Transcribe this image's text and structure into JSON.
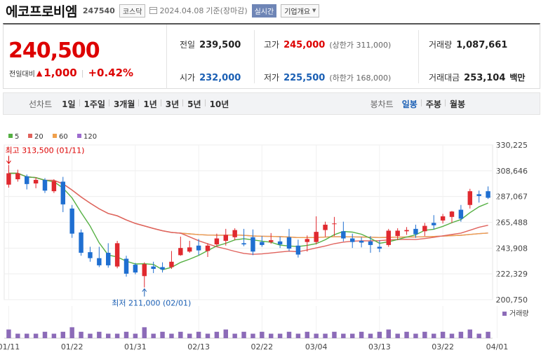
{
  "header": {
    "name": "에코프로비엠",
    "code": "247540",
    "market": "코스닥",
    "date": "2024.04.08",
    "date_suffix": "기준(장마감)",
    "realtime": "실시간",
    "company_info": "기업개요"
  },
  "quote": {
    "price": "240,500",
    "change_label": "전일대비",
    "change_amount": "1,000",
    "change_pct": "+0.42%",
    "prev_close_label": "전일",
    "prev_close": "239,500",
    "high_label": "고가",
    "high": "245,000",
    "upper_limit": "(상한가 311,000)",
    "volume_label": "거래량",
    "volume": "1,087,661",
    "open_label": "시가",
    "open": "232,000",
    "low_label": "저가",
    "low": "225,500",
    "lower_limit": "(하한가 168,000)",
    "value_label": "거래대금",
    "value": "253,104",
    "value_unit": "백만"
  },
  "periods": {
    "line_label": "선차트",
    "line_items": [
      "1일",
      "1주일",
      "3개월",
      "1년",
      "3년",
      "5년",
      "10년"
    ],
    "candle_label": "봉차트",
    "candle_items": [
      "일봉",
      "주봉",
      "월봉"
    ],
    "active_candle": "일봉"
  },
  "chart_data": {
    "type": "candlestick",
    "legend": [
      {
        "name": "5",
        "color": "#55b043"
      },
      {
        "name": "20",
        "color": "#e0625c"
      },
      {
        "name": "60",
        "color": "#f0a04b"
      },
      {
        "name": "120",
        "color": "#9d6ccf"
      }
    ],
    "y_ticks": [
      "330,225",
      "308,646",
      "287,067",
      "265,488",
      "243,908",
      "222,329",
      "200,750"
    ],
    "ylim": [
      200750,
      330225
    ],
    "x_ticks": [
      {
        "label": "01/11",
        "index": 0
      },
      {
        "label": "01/22",
        "index": 7
      },
      {
        "label": "01/31",
        "index": 14
      },
      {
        "label": "02/13",
        "index": 21
      },
      {
        "label": "02/22",
        "index": 28
      },
      {
        "label": "03/04",
        "index": 34
      },
      {
        "label": "03/13",
        "index": 41
      },
      {
        "label": "03/22",
        "index": 48
      },
      {
        "label": "04/01",
        "index": 54
      }
    ],
    "max_annotation": "최고 313,500 (01/11)",
    "min_annotation": "최저 211,000 (02/01)",
    "volume_label": "거래량",
    "candles": [
      {
        "o": 297000,
        "h": 313500,
        "l": 294500,
        "c": 306500
      },
      {
        "o": 301500,
        "h": 309500,
        "l": 299500,
        "c": 306500
      },
      {
        "o": 304000,
        "h": 305500,
        "l": 293000,
        "c": 297500
      },
      {
        "o": 298000,
        "h": 303000,
        "l": 294000,
        "c": 301000
      },
      {
        "o": 301000,
        "h": 302500,
        "l": 290000,
        "c": 292000
      },
      {
        "o": 291500,
        "h": 301500,
        "l": 290000,
        "c": 300000
      },
      {
        "o": 299500,
        "h": 303500,
        "l": 274000,
        "c": 280500
      },
      {
        "o": 277000,
        "h": 280000,
        "l": 252500,
        "c": 256000
      },
      {
        "o": 257000,
        "h": 259500,
        "l": 237500,
        "c": 240000
      },
      {
        "o": 240500,
        "h": 245000,
        "l": 232500,
        "c": 235500
      },
      {
        "o": 235500,
        "h": 245000,
        "l": 228000,
        "c": 229500
      },
      {
        "o": 240000,
        "h": 248000,
        "l": 227500,
        "c": 229500
      },
      {
        "o": 228500,
        "h": 250000,
        "l": 227000,
        "c": 248000
      },
      {
        "o": 235000,
        "h": 237500,
        "l": 220000,
        "c": 222500
      },
      {
        "o": 230000,
        "h": 231500,
        "l": 222000,
        "c": 223500
      },
      {
        "o": 220500,
        "h": 232000,
        "l": 211000,
        "c": 230500
      },
      {
        "o": 228500,
        "h": 232500,
        "l": 223000,
        "c": 226500
      },
      {
        "o": 228000,
        "h": 232000,
        "l": 223500,
        "c": 226000
      },
      {
        "o": 228000,
        "h": 241500,
        "l": 226500,
        "c": 232500
      },
      {
        "o": 238000,
        "h": 253500,
        "l": 237500,
        "c": 244000
      },
      {
        "o": 241000,
        "h": 250000,
        "l": 240000,
        "c": 244500
      },
      {
        "o": 246000,
        "h": 251500,
        "l": 238000,
        "c": 242000
      },
      {
        "o": 241500,
        "h": 248000,
        "l": 236500,
        "c": 246000
      },
      {
        "o": 247000,
        "h": 256000,
        "l": 245500,
        "c": 252000
      },
      {
        "o": 250000,
        "h": 260000,
        "l": 246000,
        "c": 255000
      },
      {
        "o": 253000,
        "h": 260500,
        "l": 250500,
        "c": 259000
      },
      {
        "o": 248000,
        "h": 260000,
        "l": 245500,
        "c": 247000
      },
      {
        "o": 253000,
        "h": 259500,
        "l": 238000,
        "c": 241000
      },
      {
        "o": 249000,
        "h": 254000,
        "l": 245000,
        "c": 246500
      },
      {
        "o": 249000,
        "h": 256500,
        "l": 247500,
        "c": 250500
      },
      {
        "o": 249500,
        "h": 253500,
        "l": 244000,
        "c": 247000
      },
      {
        "o": 253000,
        "h": 260000,
        "l": 241500,
        "c": 243500
      },
      {
        "o": 246000,
        "h": 251000,
        "l": 236000,
        "c": 238500
      },
      {
        "o": 249000,
        "h": 254500,
        "l": 241000,
        "c": 251500
      },
      {
        "o": 249000,
        "h": 270500,
        "l": 247000,
        "c": 257500
      },
      {
        "o": 259000,
        "h": 266000,
        "l": 253500,
        "c": 263500
      },
      {
        "o": 264000,
        "h": 270000,
        "l": 254000,
        "c": 264500
      },
      {
        "o": 258000,
        "h": 266000,
        "l": 249500,
        "c": 252000
      },
      {
        "o": 252000,
        "h": 256000,
        "l": 244000,
        "c": 249000
      },
      {
        "o": 250000,
        "h": 253000,
        "l": 244500,
        "c": 248500
      },
      {
        "o": 249500,
        "h": 254000,
        "l": 240000,
        "c": 246500
      },
      {
        "o": 245000,
        "h": 250500,
        "l": 240500,
        "c": 243500
      },
      {
        "o": 246500,
        "h": 260000,
        "l": 245000,
        "c": 258500
      },
      {
        "o": 254000,
        "h": 260500,
        "l": 250500,
        "c": 258500
      },
      {
        "o": 258000,
        "h": 261500,
        "l": 255000,
        "c": 259000
      },
      {
        "o": 260000,
        "h": 263500,
        "l": 252500,
        "c": 255500
      },
      {
        "o": 258000,
        "h": 265000,
        "l": 254000,
        "c": 262500
      },
      {
        "o": 265000,
        "h": 271500,
        "l": 259500,
        "c": 263000
      },
      {
        "o": 267000,
        "h": 272500,
        "l": 264500,
        "c": 270500
      },
      {
        "o": 270000,
        "h": 275000,
        "l": 265000,
        "c": 274500
      },
      {
        "o": 276000,
        "h": 280000,
        "l": 266000,
        "c": 268500
      },
      {
        "o": 280000,
        "h": 293500,
        "l": 277000,
        "c": 291500
      },
      {
        "o": 289000,
        "h": 292000,
        "l": 282000,
        "c": 287500
      },
      {
        "o": 291500,
        "h": 295500,
        "l": 285000,
        "c": 286000
      }
    ],
    "volumes": [
      0.27,
      0.14,
      0.14,
      0.14,
      0.2,
      0.14,
      0.2,
      0.34,
      0.2,
      0.14,
      0.2,
      0.14,
      0.14,
      0.2,
      0.14,
      0.34,
      0.14,
      0.2,
      0.14,
      0.2,
      0.14,
      0.2,
      0.14,
      0.2,
      0.27,
      0.14,
      0.2,
      0.14,
      0.2,
      0.14,
      0.14,
      0.2,
      0.14,
      0.2,
      0.14,
      0.14,
      0.2,
      0.14,
      0.14,
      0.2,
      0.14,
      0.2,
      0.27,
      0.14,
      0.2,
      0.14,
      0.2,
      0.14,
      0.2,
      0.14,
      0.2,
      0.27,
      0.14,
      0.2
    ]
  }
}
